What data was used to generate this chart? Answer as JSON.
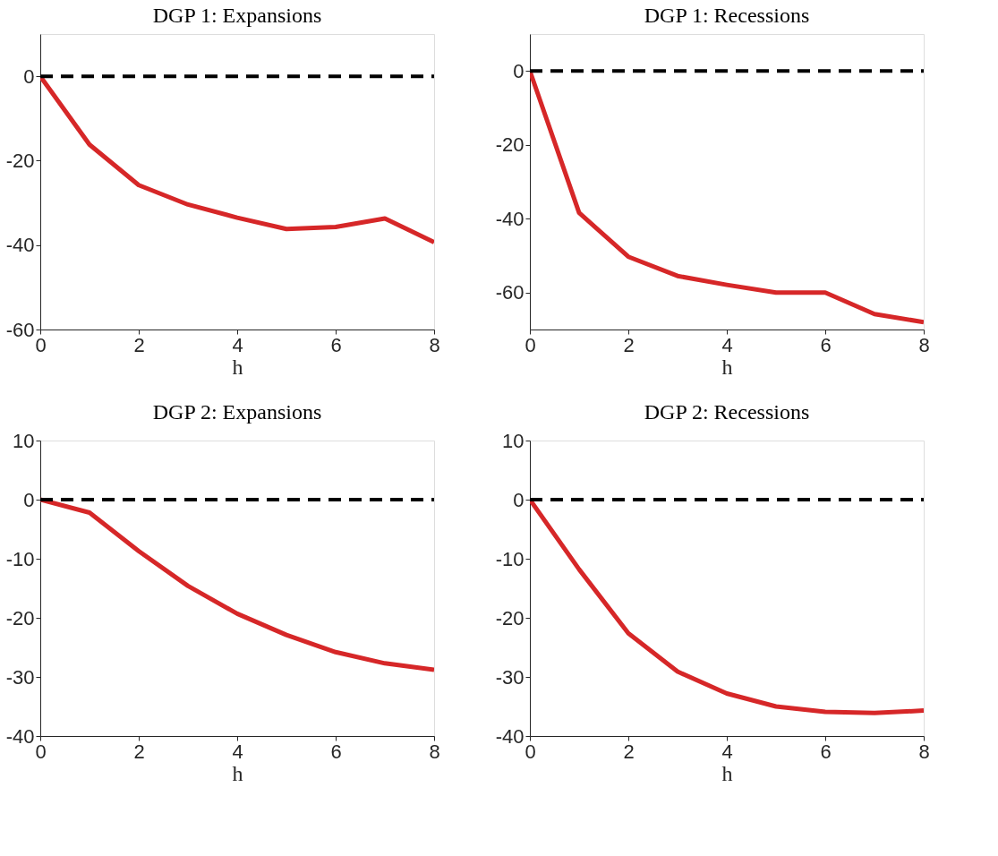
{
  "chart_data": [
    {
      "type": "line",
      "title": "DGP 1: Expansions",
      "xlabel": "h",
      "x": [
        0,
        1,
        2,
        3,
        4,
        5,
        6,
        7,
        8
      ],
      "xlim": [
        0,
        8
      ],
      "xticks": [
        0,
        2,
        4,
        6,
        8
      ],
      "ylim": [
        -60,
        10
      ],
      "yticks": [
        -60,
        -40,
        -20,
        0
      ],
      "grid": false,
      "line_style": "solid",
      "series": [
        {
          "color": "#d62728",
          "values": [
            0,
            -16.2,
            -25.8,
            -30.4,
            -33.5,
            -36.2,
            -35.7,
            -33.7,
            -39.3
          ]
        }
      ],
      "ref_lines": [
        {
          "axis": "y",
          "value": 0,
          "color": "#000000",
          "line_style": "dashed"
        }
      ]
    },
    {
      "type": "line",
      "title": "DGP 1: Recessions",
      "xlabel": "h",
      "x": [
        0,
        1,
        2,
        3,
        4,
        5,
        6,
        7,
        8
      ],
      "xlim": [
        0,
        8
      ],
      "xticks": [
        0,
        2,
        4,
        6,
        8
      ],
      "ylim": [
        -70,
        10
      ],
      "yticks": [
        -60,
        -40,
        -20,
        0
      ],
      "grid": false,
      "line_style": "solid",
      "series": [
        {
          "color": "#d62728",
          "values": [
            0,
            -38.4,
            -50.3,
            -55.5,
            -57.9,
            -60.0,
            -60.0,
            -65.8,
            -68.0
          ]
        }
      ],
      "ref_lines": [
        {
          "axis": "y",
          "value": 0,
          "color": "#000000",
          "line_style": "dashed"
        }
      ]
    },
    {
      "type": "line",
      "title": "DGP 2: Expansions",
      "xlabel": "h",
      "x": [
        0,
        1,
        2,
        3,
        4,
        5,
        6,
        7,
        8
      ],
      "xlim": [
        0,
        8
      ],
      "xticks": [
        0,
        2,
        4,
        6,
        8
      ],
      "ylim": [
        -40,
        10
      ],
      "yticks": [
        -40,
        -30,
        -20,
        -10,
        0,
        10
      ],
      "grid": false,
      "line_style": "solid",
      "series": [
        {
          "color": "#d62728",
          "values": [
            0,
            -2.2,
            -8.7,
            -14.6,
            -19.3,
            -22.9,
            -25.8,
            -27.7,
            -28.8
          ]
        }
      ],
      "ref_lines": [
        {
          "axis": "y",
          "value": 0,
          "color": "#000000",
          "line_style": "dashed"
        }
      ]
    },
    {
      "type": "line",
      "title": "DGP 2: Recessions",
      "xlabel": "h",
      "x": [
        0,
        1,
        2,
        3,
        4,
        5,
        6,
        7,
        8
      ],
      "xlim": [
        0,
        8
      ],
      "xticks": [
        0,
        2,
        4,
        6,
        8
      ],
      "ylim": [
        -40,
        10
      ],
      "yticks": [
        -40,
        -30,
        -20,
        -10,
        0,
        10
      ],
      "grid": false,
      "line_style": "solid",
      "series": [
        {
          "color": "#d62728",
          "values": [
            0,
            -11.8,
            -22.6,
            -29.1,
            -32.8,
            -35.0,
            -35.9,
            -36.1,
            -35.7
          ]
        }
      ],
      "ref_lines": [
        {
          "axis": "y",
          "value": 0,
          "color": "#000000",
          "line_style": "dashed"
        }
      ]
    }
  ]
}
